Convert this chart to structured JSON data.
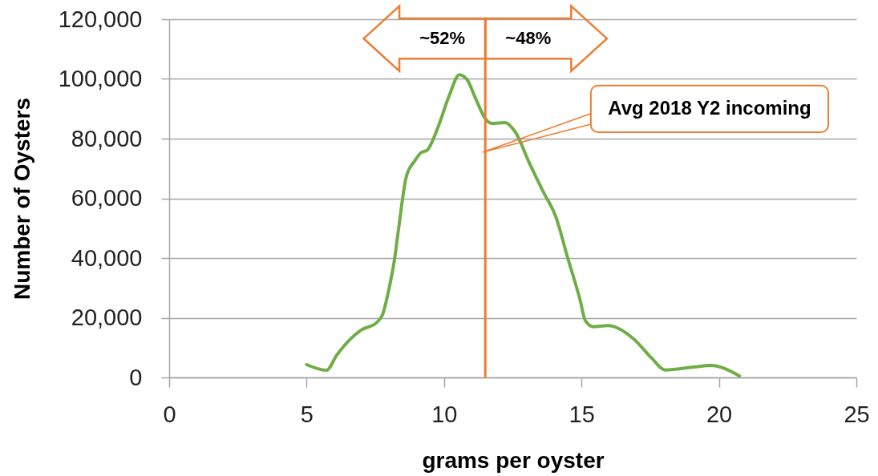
{
  "chart_data": {
    "type": "line",
    "xlabel": "grams per oyster",
    "ylabel": "Number of Oysters",
    "x": [
      5.0,
      5.72,
      6.1,
      6.6,
      6.97,
      7.56,
      7.76,
      8.0,
      8.2,
      8.34,
      8.63,
      8.93,
      9.15,
      9.39,
      9.8,
      10.18,
      10.56,
      10.85,
      11.15,
      11.5,
      11.73,
      12.22,
      12.6,
      13.1,
      13.62,
      14.06,
      14.5,
      14.94,
      15.14,
      15.43,
      15.96,
      16.9,
      17.56,
      18.05,
      19.1,
      19.7,
      20.75
    ],
    "series": [
      {
        "color": "#70ad47",
        "values": [
          4300,
          2400,
          7500,
          12900,
          15800,
          18500,
          21000,
          29800,
          39700,
          49400,
          67400,
          72500,
          75200,
          76200,
          84300,
          94200,
          101400,
          99600,
          93400,
          86700,
          85100,
          85400,
          82100,
          71900,
          62000,
          54000,
          40000,
          26300,
          19000,
          17000,
          17400,
          12900,
          6400,
          2500,
          3500,
          4000,
          500
        ]
      }
    ],
    "xlim": [
      0,
      25
    ],
    "ylim": [
      0,
      120000
    ],
    "xticks": [
      0,
      5,
      10,
      15,
      20,
      25
    ],
    "yticks": [
      0,
      {
        "value": 20000,
        "label": "20,000"
      },
      {
        "value": 40000,
        "label": "40,000"
      },
      {
        "value": 60000,
        "label": "60,000"
      },
      {
        "value": 80000,
        "label": "80,000"
      },
      {
        "value": 100000,
        "label": "100,000"
      },
      {
        "value": 120000,
        "label": "120,000"
      }
    ],
    "grid": "y",
    "marker": "none",
    "line_style": "solid",
    "ref_lines": [
      {
        "axis": "x",
        "value": 11.5,
        "color": "#ed7d31"
      }
    ],
    "annotations": [
      "~52%",
      "~48%",
      "Avg 2018 Y2 incoming"
    ]
  }
}
